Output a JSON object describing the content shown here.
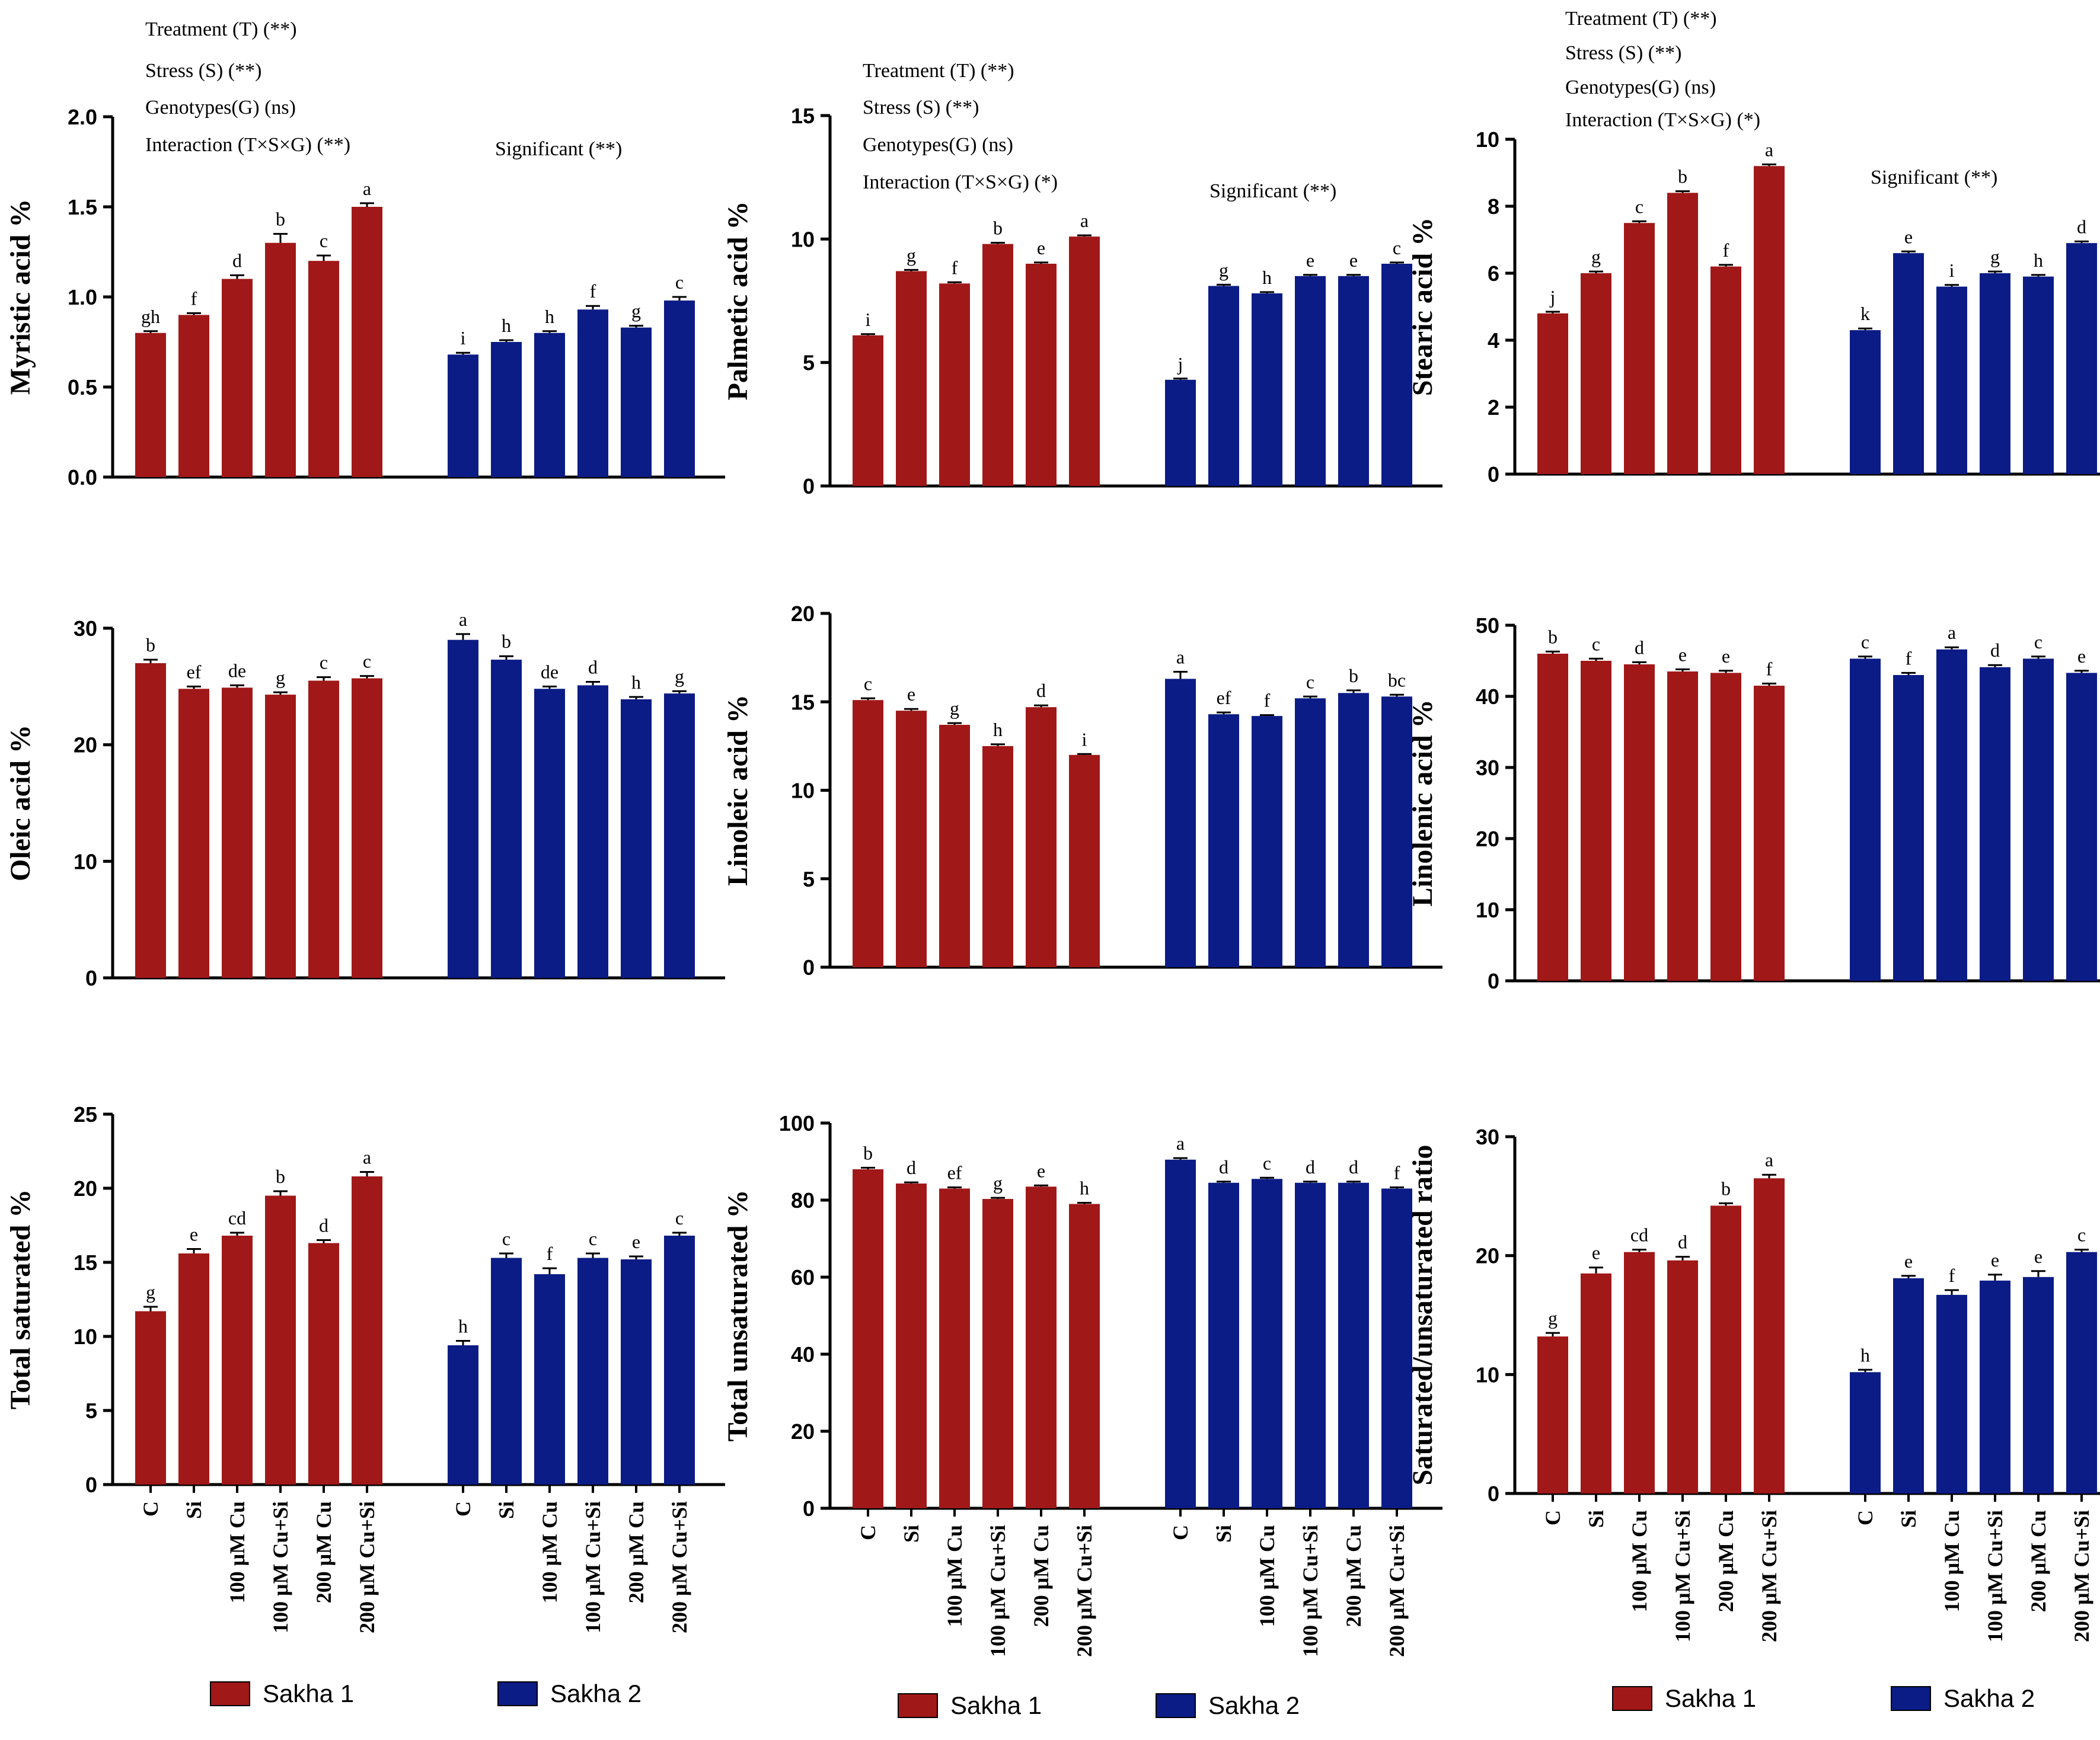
{
  "colors": {
    "Sakha 1": "#a11818",
    "Sakha 2": "#0b1c86"
  },
  "legend": [
    "Sakha 1",
    "Sakha 2"
  ],
  "chart_data": [
    {
      "type": "bar",
      "ylabel": "Myristic acid  %",
      "ylim": [
        0,
        2.0
      ],
      "yticks": [
        0,
        0.5,
        1.0,
        1.5,
        2.0
      ],
      "ytick_labels": [
        "0.0",
        "0.5",
        "1.0",
        "1.5",
        "2.0"
      ],
      "categories": [
        "C",
        "Si",
        "100 μM Cu",
        "100 μM Cu+Si",
        "200 μM Cu",
        "200 μM Cu+Si"
      ],
      "series": [
        {
          "name": "Sakha 1",
          "values": [
            0.8,
            0.9,
            1.1,
            1.3,
            1.2,
            1.5
          ],
          "errors": [
            0.01,
            0.01,
            0.02,
            0.05,
            0.03,
            0.02
          ],
          "letters": [
            "gh",
            "f",
            "d",
            "b",
            "c",
            "a"
          ]
        },
        {
          "name": "Sakha 2",
          "values": [
            0.68,
            0.75,
            0.8,
            0.93,
            0.83,
            0.98
          ],
          "errors": [
            0.01,
            0.01,
            0.01,
            0.02,
            0.01,
            0.02
          ],
          "letters": [
            "i",
            "h",
            "h",
            "f",
            "g",
            "c"
          ]
        }
      ],
      "annotations": [
        "Treatment (T) (**)",
        "Stress (S) (**)",
        "Genotypes(G) (ns)",
        "Interaction (T×S×G) (**)"
      ],
      "significance": "Significant (**)"
    },
    {
      "type": "bar",
      "ylabel": "Palmetic acid  %",
      "ylim": [
        0,
        15
      ],
      "yticks": [
        0,
        5,
        10,
        15
      ],
      "ytick_labels": [
        "0",
        "5",
        "10",
        "15"
      ],
      "categories": [
        "C",
        "Si",
        "100 μM Cu",
        "100 μM Cu+Si",
        "200 μM Cu",
        "200 μM Cu+Si"
      ],
      "series": [
        {
          "name": "Sakha 1",
          "values": [
            6.1,
            8.7,
            8.2,
            9.8,
            9.0,
            10.1
          ],
          "errors": [
            0.05,
            0.05,
            0.05,
            0.05,
            0.05,
            0.05
          ],
          "letters": [
            "i",
            "g",
            "f",
            "b",
            "e",
            "a"
          ]
        },
        {
          "name": "Sakha 2",
          "values": [
            4.3,
            8.1,
            7.8,
            8.5,
            8.5,
            9.0
          ],
          "errors": [
            0.05,
            0.05,
            0.05,
            0.05,
            0.05,
            0.05
          ],
          "letters": [
            "j",
            "g",
            "h",
            "e",
            "e",
            "c"
          ]
        }
      ],
      "annotations": [
        "Treatment (T) (**)",
        "Stress (S) (**)",
        "Genotypes(G) (ns)",
        "Interaction (T×S×G) (*)"
      ],
      "significance": "Significant (**)"
    },
    {
      "type": "bar",
      "ylabel": "Stearic acid  %",
      "ylim": [
        0,
        10
      ],
      "yticks": [
        0,
        2,
        4,
        6,
        8,
        10
      ],
      "ytick_labels": [
        "0",
        "2",
        "4",
        "6",
        "8",
        "10"
      ],
      "categories": [
        "C",
        "Si",
        "100 μM Cu",
        "100 μM Cu+Si",
        "200 μM Cu",
        "200 μM Cu+Si"
      ],
      "series": [
        {
          "name": "Sakha 1",
          "values": [
            4.8,
            6.0,
            7.5,
            8.4,
            6.2,
            9.2
          ],
          "errors": [
            0.05,
            0.05,
            0.05,
            0.05,
            0.05,
            0.05
          ],
          "letters": [
            "j",
            "g",
            "c",
            "b",
            "f",
            "a"
          ]
        },
        {
          "name": "Sakha 2",
          "values": [
            4.3,
            6.6,
            5.6,
            6.0,
            5.9,
            6.9
          ],
          "errors": [
            0.05,
            0.05,
            0.05,
            0.05,
            0.05,
            0.05
          ],
          "letters": [
            "k",
            "e",
            "i",
            "g",
            "h",
            "d"
          ]
        }
      ],
      "annotations": [
        "Treatment (T) (**)",
        "Stress (S) (**)",
        "Genotypes(G) (ns)",
        "Interaction (T×S×G) (*)"
      ],
      "significance": "Significant (**)"
    },
    {
      "type": "bar",
      "ylabel": "Oleic acid  %",
      "ylim": [
        0,
        30
      ],
      "yticks": [
        0,
        10,
        20,
        30
      ],
      "ytick_labels": [
        "0",
        "10",
        "20",
        "30"
      ],
      "categories": [
        "C",
        "Si",
        "100 μM Cu",
        "100 μM Cu+Si",
        "200 μM Cu",
        "200 μM Cu+Si"
      ],
      "series": [
        {
          "name": "Sakha 1",
          "values": [
            27.0,
            24.8,
            24.9,
            24.3,
            25.5,
            25.7
          ],
          "errors": [
            0.3,
            0.2,
            0.2,
            0.2,
            0.3,
            0.2
          ],
          "letters": [
            "b",
            "ef",
            "de",
            "g",
            "c",
            "c"
          ]
        },
        {
          "name": "Sakha 2",
          "values": [
            29.0,
            27.3,
            24.8,
            25.1,
            23.9,
            24.4
          ],
          "errors": [
            0.5,
            0.3,
            0.2,
            0.3,
            0.2,
            0.2
          ],
          "letters": [
            "a",
            "b",
            "de",
            "d",
            "h",
            "g"
          ]
        }
      ]
    },
    {
      "type": "bar",
      "ylabel": "Linoleic acid  %",
      "ylim": [
        0,
        20
      ],
      "yticks": [
        0,
        5,
        10,
        15,
        20
      ],
      "ytick_labels": [
        "0",
        "5",
        "10",
        "15",
        "20"
      ],
      "categories": [
        "C",
        "Si",
        "100 μM Cu",
        "100 μM Cu+Si",
        "200 μM Cu",
        "200 μM Cu+Si"
      ],
      "series": [
        {
          "name": "Sakha 1",
          "values": [
            15.1,
            14.5,
            13.7,
            12.5,
            14.7,
            12.0
          ],
          "errors": [
            0.1,
            0.1,
            0.1,
            0.1,
            0.1,
            0.05
          ],
          "letters": [
            "c",
            "e",
            "g",
            "h",
            "d",
            "i"
          ]
        },
        {
          "name": "Sakha 2",
          "values": [
            16.3,
            14.3,
            14.2,
            15.2,
            15.5,
            15.3
          ],
          "errors": [
            0.4,
            0.1,
            0.05,
            0.1,
            0.15,
            0.1
          ],
          "letters": [
            "a",
            "ef",
            "f",
            "c",
            "b",
            "bc"
          ]
        }
      ]
    },
    {
      "type": "bar",
      "ylabel": "Linolenic acid  %",
      "ylim": [
        0,
        50
      ],
      "yticks": [
        0,
        10,
        20,
        30,
        40,
        50
      ],
      "ytick_labels": [
        "0",
        "10",
        "20",
        "30",
        "40",
        "50"
      ],
      "categories": [
        "C",
        "Si",
        "100 μM Cu",
        "100 μM Cu+Si",
        "200 μM Cu",
        "200 μM Cu+Si"
      ],
      "series": [
        {
          "name": "Sakha 1",
          "values": [
            46.0,
            45.0,
            44.5,
            43.5,
            43.3,
            41.5
          ],
          "errors": [
            0.3,
            0.3,
            0.3,
            0.3,
            0.3,
            0.3
          ],
          "letters": [
            "b",
            "c",
            "d",
            "e",
            "e",
            "f"
          ]
        },
        {
          "name": "Sakha 2",
          "values": [
            45.3,
            43.0,
            46.6,
            44.1,
            45.3,
            43.3
          ],
          "errors": [
            0.3,
            0.3,
            0.3,
            0.3,
            0.3,
            0.3
          ],
          "letters": [
            "c",
            "f",
            "a",
            "d",
            "c",
            "e"
          ]
        }
      ]
    },
    {
      "type": "bar",
      "ylabel": "Total saturated  %",
      "ylim": [
        0,
        25
      ],
      "yticks": [
        0,
        5,
        10,
        15,
        20,
        25
      ],
      "ytick_labels": [
        "0",
        "5",
        "10",
        "15",
        "20",
        "25"
      ],
      "categories": [
        "C",
        "Si",
        "100 μM Cu",
        "100 μM Cu+Si",
        "200 μM Cu",
        "200 μM Cu+Si"
      ],
      "series": [
        {
          "name": "Sakha 1",
          "values": [
            11.7,
            15.6,
            16.8,
            19.5,
            16.3,
            20.8
          ],
          "errors": [
            0.3,
            0.3,
            0.2,
            0.3,
            0.2,
            0.3
          ],
          "letters": [
            "g",
            "e",
            "cd",
            "b",
            "d",
            "a"
          ]
        },
        {
          "name": "Sakha 2",
          "values": [
            9.4,
            15.3,
            14.2,
            15.3,
            15.2,
            16.8
          ],
          "errors": [
            0.3,
            0.3,
            0.4,
            0.3,
            0.2,
            0.2
          ],
          "letters": [
            "h",
            "c",
            "f",
            "c",
            "e",
            "c"
          ]
        }
      ]
    },
    {
      "type": "bar",
      "ylabel": "Total unsaturated  %",
      "ylim": [
        0,
        100
      ],
      "yticks": [
        0,
        20,
        40,
        60,
        80,
        100
      ],
      "ytick_labels": [
        "0",
        "20",
        "40",
        "60",
        "80",
        "100"
      ],
      "categories": [
        "C",
        "Si",
        "100 μM Cu",
        "100 μM Cu+Si",
        "200 μM Cu",
        "200 μM Cu+Si"
      ],
      "series": [
        {
          "name": "Sakha 1",
          "values": [
            88.0,
            84.3,
            83.0,
            80.3,
            83.5,
            79.0
          ],
          "errors": [
            0.4,
            0.3,
            0.3,
            0.3,
            0.3,
            0.3
          ],
          "letters": [
            "b",
            "d",
            "ef",
            "g",
            "e",
            "h"
          ]
        },
        {
          "name": "Sakha 2",
          "values": [
            90.5,
            84.5,
            85.5,
            84.5,
            84.5,
            83.0
          ],
          "errors": [
            0.4,
            0.3,
            0.3,
            0.3,
            0.3,
            0.3
          ],
          "letters": [
            "a",
            "d",
            "c",
            "d",
            "d",
            "f"
          ]
        }
      ]
    },
    {
      "type": "bar",
      "ylabel": "Saturated/unsaturated ratio",
      "ylim": [
        0,
        30
      ],
      "yticks": [
        0,
        10,
        20,
        30
      ],
      "ytick_labels": [
        "0",
        "10",
        "20",
        "30"
      ],
      "categories": [
        "C",
        "Si",
        "100 μM Cu",
        "100 μM Cu+Si",
        "200 μM Cu",
        "200 μM Cu+Si"
      ],
      "series": [
        {
          "name": "Sakha 1",
          "values": [
            13.2,
            18.5,
            20.3,
            19.6,
            24.2,
            26.5
          ],
          "errors": [
            0.3,
            0.5,
            0.2,
            0.3,
            0.2,
            0.3
          ],
          "letters": [
            "g",
            "e",
            "cd",
            "d",
            "b",
            "a"
          ]
        },
        {
          "name": "Sakha 2",
          "values": [
            10.2,
            18.1,
            16.7,
            17.9,
            18.2,
            20.3
          ],
          "errors": [
            0.2,
            0.2,
            0.4,
            0.5,
            0.5,
            0.2
          ],
          "letters": [
            "h",
            "e",
            "f",
            "e",
            "e",
            "c"
          ]
        }
      ]
    }
  ]
}
